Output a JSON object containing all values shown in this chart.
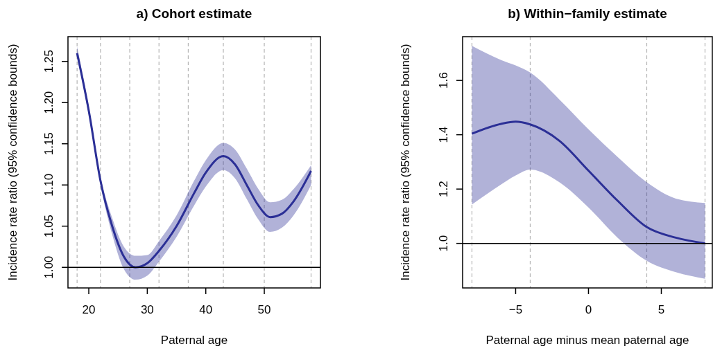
{
  "chart_data": [
    {
      "type": "line",
      "title": "a) Cohort estimate",
      "xlabel": "Paternal age",
      "ylabel": "Incidence rate ratio (95% confidence bounds)",
      "xlim": [
        16.44,
        59.6
      ],
      "ylim": [
        0.975,
        1.28
      ],
      "xticks": [
        20,
        30,
        40,
        50
      ],
      "yticks": [
        {
          "value": 1.0,
          "label": "1.00"
        },
        {
          "value": 1.05,
          "label": "1.05"
        },
        {
          "value": 1.1,
          "label": "1.10"
        },
        {
          "value": 1.15,
          "label": "1.15"
        },
        {
          "value": 1.2,
          "label": "1.20"
        },
        {
          "value": 1.25,
          "label": "1.25"
        }
      ],
      "x": [
        18,
        20,
        22,
        24,
        26,
        28,
        30,
        32,
        35,
        38,
        40,
        43,
        45,
        47,
        49,
        51,
        53,
        55,
        58
      ],
      "series": [
        {
          "color": "#2b2f96",
          "values": [
            1.26,
            1.19,
            1.105,
            1.05,
            1.013,
            1.0,
            1.005,
            1.02,
            1.05,
            1.09,
            1.115,
            1.135,
            1.125,
            1.1,
            1.075,
            1.061,
            1.065,
            1.08,
            1.117
          ],
          "lower": [
            1.255,
            1.185,
            1.1,
            1.04,
            0.998,
            0.985,
            0.99,
            1.007,
            1.037,
            1.075,
            1.098,
            1.118,
            1.108,
            1.083,
            1.058,
            1.043,
            1.048,
            1.063,
            1.1
          ],
          "upper": [
            1.268,
            1.195,
            1.11,
            1.06,
            1.025,
            1.014,
            1.015,
            1.032,
            1.063,
            1.105,
            1.13,
            1.151,
            1.143,
            1.12,
            1.095,
            1.079,
            1.082,
            1.095,
            1.124
          ]
        }
      ],
      "ref_lines": [
        {
          "axis": "y",
          "value": 1,
          "color": "#000000",
          "line_style": "solid"
        },
        {
          "axis": "x",
          "value": 18,
          "color": "#b4b4b4",
          "line_style": "dashed"
        },
        {
          "axis": "x",
          "value": 22,
          "color": "#b4b4b4",
          "line_style": "dashed"
        },
        {
          "axis": "x",
          "value": 27,
          "color": "#b4b4b4",
          "line_style": "dashed"
        },
        {
          "axis": "x",
          "value": 32,
          "color": "#b4b4b4",
          "line_style": "dashed"
        },
        {
          "axis": "x",
          "value": 37,
          "color": "#b4b4b4",
          "line_style": "dashed"
        },
        {
          "axis": "x",
          "value": 43,
          "color": "#b4b4b4",
          "line_style": "dashed"
        },
        {
          "axis": "x",
          "value": 50,
          "color": "#b4b4b4",
          "line_style": "dashed"
        },
        {
          "axis": "x",
          "value": 58,
          "color": "#b4b4b4",
          "line_style": "dashed"
        }
      ],
      "grid": false,
      "marker": "none",
      "line_style": "solid"
    },
    {
      "type": "line",
      "title": "b) Within−family estimate",
      "xlabel": "Paternal age minus mean paternal age",
      "ylabel": "Incidence rate ratio (95% confidence bounds)",
      "xlim": [
        -8.64,
        8.5
      ],
      "ylim": [
        0.836,
        1.761
      ],
      "xticks": [
        {
          "value": -5,
          "label": "−5"
        },
        0,
        5
      ],
      "yticks": [
        {
          "value": 1.0,
          "label": "1.0"
        },
        1.2,
        1.4,
        1.6
      ],
      "x": [
        -8,
        -6,
        -5,
        -4,
        -2,
        0,
        2,
        4,
        6,
        8
      ],
      "series": [
        {
          "color": "#2b2f96",
          "values": [
            1.404,
            1.44,
            1.448,
            1.438,
            1.378,
            1.268,
            1.157,
            1.06,
            1.021,
            1.0
          ],
          "lower": [
            1.143,
            1.217,
            1.25,
            1.272,
            1.225,
            1.132,
            1.021,
            0.936,
            0.894,
            0.87
          ],
          "upper": [
            1.727,
            1.675,
            1.655,
            1.629,
            1.53,
            1.42,
            1.318,
            1.225,
            1.165,
            1.149
          ]
        }
      ],
      "ref_lines": [
        {
          "axis": "y",
          "value": 1,
          "color": "#000000",
          "line_style": "solid"
        },
        {
          "axis": "x",
          "value": -8,
          "color": "#b4b4b4",
          "line_style": "dashed"
        },
        {
          "axis": "x",
          "value": -4,
          "color": "#b4b4b4",
          "line_style": "dashed"
        },
        {
          "axis": "x",
          "value": 4,
          "color": "#b4b4b4",
          "line_style": "dashed"
        },
        {
          "axis": "x",
          "value": 8,
          "color": "#b4b4b4",
          "line_style": "dashed"
        }
      ],
      "grid": false,
      "marker": "none",
      "line_style": "solid"
    }
  ]
}
